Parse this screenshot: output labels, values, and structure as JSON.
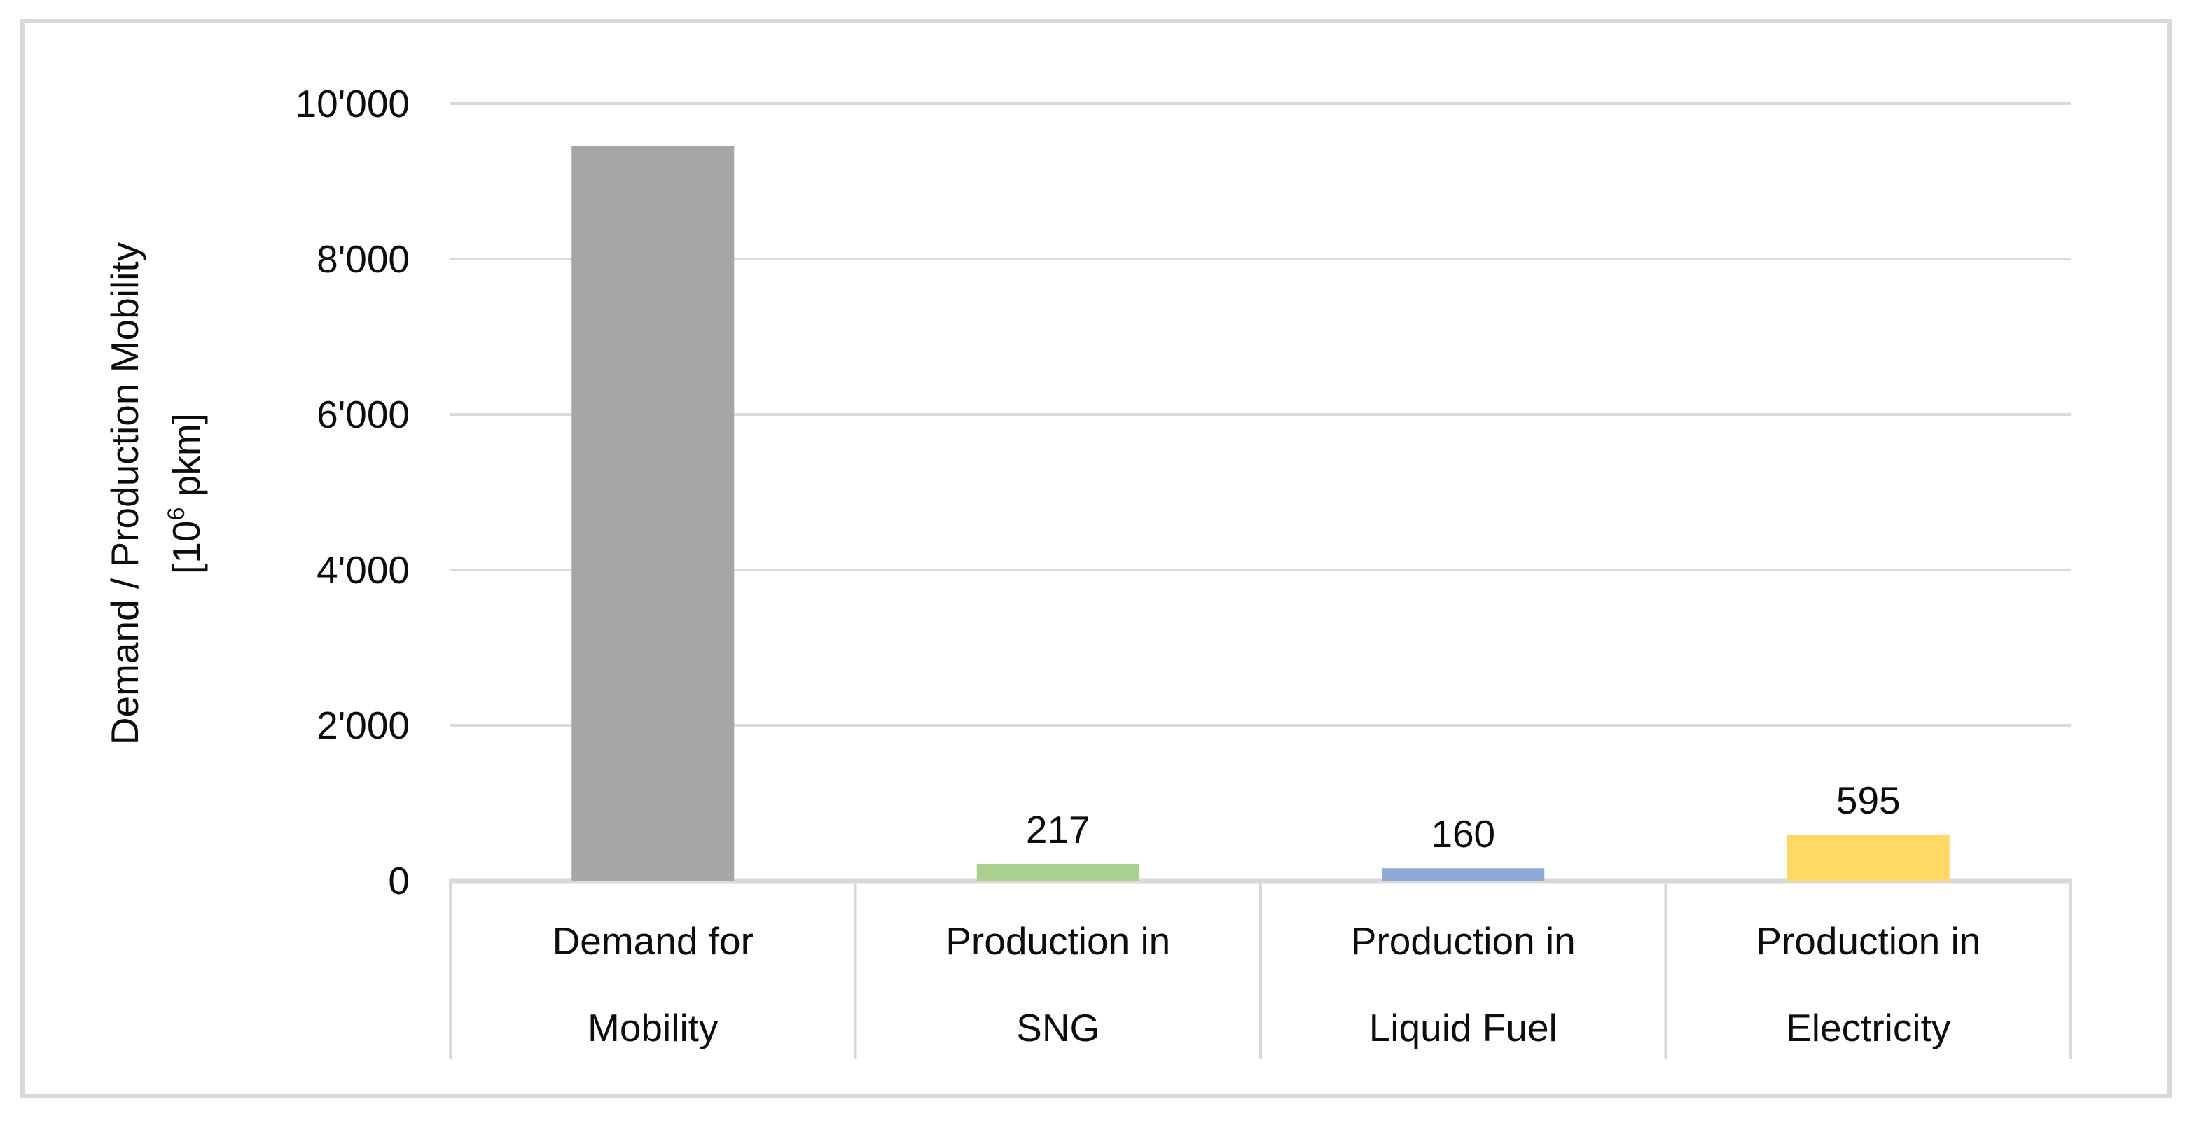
{
  "chart_data": {
    "type": "bar",
    "categories": [
      {
        "line1": "Demand for",
        "line2": "Mobility"
      },
      {
        "line1": "Production in",
        "line2": "SNG"
      },
      {
        "line1": "Production in",
        "line2": "Liquid Fuel"
      },
      {
        "line1": "Production in",
        "line2": "Electricity"
      }
    ],
    "values": [
      9450,
      217,
      160,
      595
    ],
    "data_labels": [
      "",
      "217",
      "160",
      "595"
    ],
    "bar_colors": [
      "#A6A6A6",
      "#A9D08E",
      "#8EAADB",
      "#FFD966"
    ],
    "title": "",
    "xlabel": "",
    "ylabel_line1": "Demand / Production Mobility",
    "ylabel_unit_prefix": "[10",
    "ylabel_unit_sup": "6",
    "ylabel_unit_suffix": " pkm]",
    "yticks": [
      {
        "label": "10'000",
        "value": 10000
      },
      {
        "label": "8'000",
        "value": 8000
      },
      {
        "label": "6'000",
        "value": 6000
      },
      {
        "label": "4'000",
        "value": 4000
      },
      {
        "label": "2'000",
        "value": 2000
      },
      {
        "label": "0",
        "value": 0
      }
    ],
    "ylim": [
      0,
      10000
    ],
    "grid": true,
    "legend_position": "none",
    "gridline_color": "#DADADA",
    "axis_line_color": "#D9D9D9",
    "chart_border_color": "#D9D9D9",
    "text_color": "#0d0d0d",
    "background_color": "#ffffff"
  }
}
